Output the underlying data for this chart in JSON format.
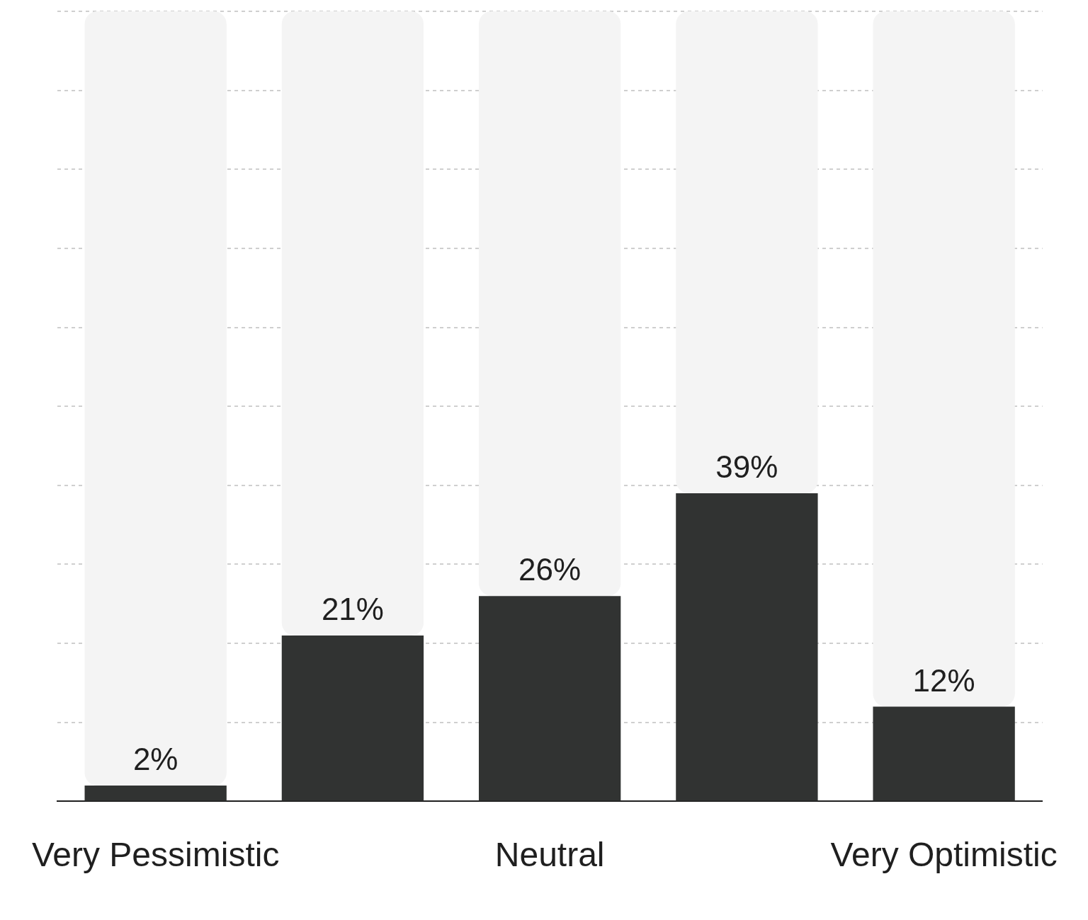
{
  "chart_data": {
    "type": "bar",
    "categories": [
      "Very Pessimistic",
      null,
      "Neutral",
      null,
      "Very Optimistic"
    ],
    "stacked": true,
    "series": [
      {
        "color": "#313332",
        "values": [
          2,
          21,
          26,
          39,
          12
        ],
        "value_labels": [
          "2%",
          "21%",
          "26%",
          "39%",
          "12%"
        ]
      },
      {
        "color": "#f4f4f4",
        "values": [
          98,
          79,
          74,
          61,
          88
        ]
      }
    ],
    "ylim": [
      0,
      100
    ],
    "yticks": [
      {
        "value": 0,
        "label": null
      },
      {
        "value": 10,
        "label": null
      },
      {
        "value": 20,
        "label": null
      },
      {
        "value": 30,
        "label": null
      },
      {
        "value": 40,
        "label": null
      },
      {
        "value": 50,
        "label": null
      },
      {
        "value": 60,
        "label": null
      },
      {
        "value": 70,
        "label": null
      },
      {
        "value": 80,
        "label": null
      },
      {
        "value": 90,
        "label": null
      },
      {
        "value": 100,
        "label": null
      }
    ],
    "grid": "y",
    "tick_labels": "x",
    "legend": false
  }
}
